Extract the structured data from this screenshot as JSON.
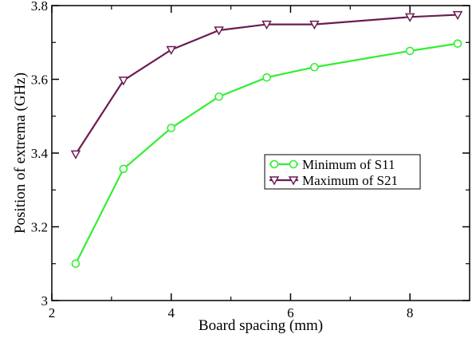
{
  "chart_data": {
    "type": "line",
    "title": "",
    "xlabel": "Board spacing (mm)",
    "ylabel": "Position of extrema (GHz)",
    "xlim": [
      2,
      9
    ],
    "ylim": [
      3,
      3.8
    ],
    "x_ticks": [
      2,
      4,
      6,
      8
    ],
    "x_tick_labels": [
      "2",
      "4",
      "6",
      "8"
    ],
    "y_ticks": [
      3,
      3.2,
      3.4,
      3.6,
      3.8
    ],
    "y_tick_labels": [
      "3",
      "3.2",
      "3.4",
      "3.6",
      "3.8"
    ],
    "grid": false,
    "legend_position": "right-middle",
    "x": [
      2.4,
      3.2,
      4.0,
      4.8,
      5.6,
      6.4,
      8.0,
      8.8
    ],
    "series": [
      {
        "name": "Minimum of S11",
        "marker": "circle",
        "color": "#33ee33",
        "values": [
          3.1,
          3.357,
          3.468,
          3.553,
          3.605,
          3.633,
          3.677,
          3.697
        ]
      },
      {
        "name": "Maximum of S21",
        "marker": "triangle-down",
        "color": "#6b1c52",
        "values": [
          3.397,
          3.597,
          3.68,
          3.733,
          3.749,
          3.749,
          3.769,
          3.775
        ]
      }
    ]
  }
}
